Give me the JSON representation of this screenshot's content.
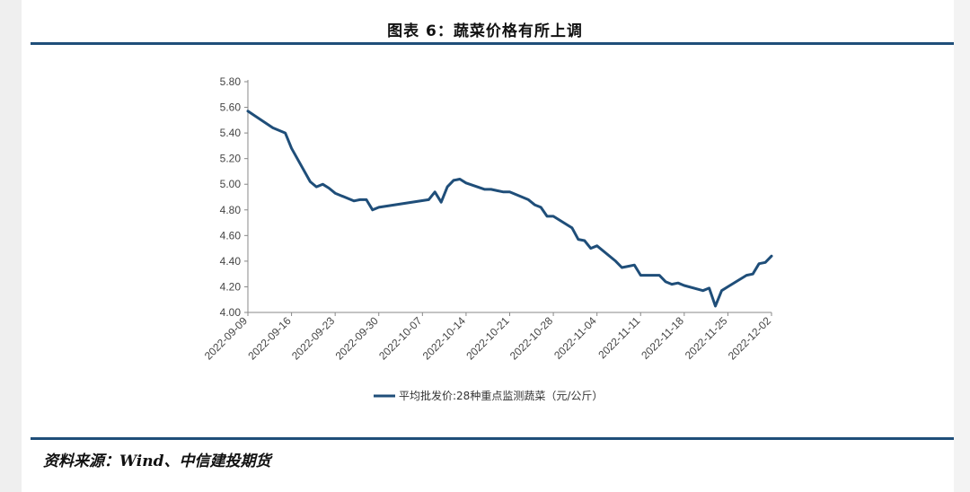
{
  "header": {
    "title": "图表 6：蔬菜价格有所上调"
  },
  "footer": {
    "source": "资料来源：Wind、中信建投期货"
  },
  "colors": {
    "line": "#1f4e79",
    "rule": "#1f4e79"
  },
  "chart_data": {
    "type": "line",
    "title": "",
    "xlabel": "",
    "ylabel": "",
    "ylim": [
      4.0,
      5.8
    ],
    "yticks": [
      "5.80",
      "5.60",
      "5.40",
      "5.20",
      "5.00",
      "4.80",
      "4.60",
      "4.40",
      "4.20",
      "4.00"
    ],
    "xticks": [
      "2022-09-09",
      "2022-09-16",
      "2022-09-23",
      "2022-09-30",
      "2022-10-07",
      "2022-10-14",
      "2022-10-21",
      "2022-10-28",
      "2022-11-04",
      "2022-11-11",
      "2022-11-18",
      "2022-11-25",
      "2022-12-02"
    ],
    "legend_position": "bottom",
    "grid": false,
    "series": [
      {
        "name": "平均批发价:28种重点监测蔬菜（元/公斤）",
        "x": [
          "2022-09-09",
          "2022-09-13",
          "2022-09-15",
          "2022-09-16",
          "2022-09-19",
          "2022-09-20",
          "2022-09-21",
          "2022-09-22",
          "2022-09-23",
          "2022-09-26",
          "2022-09-27",
          "2022-09-28",
          "2022-09-29",
          "2022-09-30",
          "2022-10-08",
          "2022-10-09",
          "2022-10-10",
          "2022-10-11",
          "2022-10-12",
          "2022-10-13",
          "2022-10-14",
          "2022-10-17",
          "2022-10-18",
          "2022-10-19",
          "2022-10-20",
          "2022-10-21",
          "2022-10-24",
          "2022-10-25",
          "2022-10-26",
          "2022-10-27",
          "2022-10-28",
          "2022-10-31",
          "2022-11-01",
          "2022-11-02",
          "2022-11-03",
          "2022-11-04",
          "2022-11-07",
          "2022-11-08",
          "2022-11-09",
          "2022-11-10",
          "2022-11-11",
          "2022-11-14",
          "2022-11-15",
          "2022-11-16",
          "2022-11-17",
          "2022-11-18",
          "2022-11-21",
          "2022-11-22",
          "2022-11-23",
          "2022-11-24",
          "2022-11-25",
          "2022-11-28",
          "2022-11-29",
          "2022-11-30",
          "2022-12-01",
          "2022-12-02"
        ],
        "values": [
          5.57,
          5.44,
          5.4,
          5.28,
          5.02,
          4.98,
          5.0,
          4.97,
          4.93,
          4.87,
          4.88,
          4.88,
          4.8,
          4.82,
          4.88,
          4.94,
          4.86,
          4.98,
          5.03,
          5.04,
          5.01,
          4.96,
          4.96,
          4.95,
          4.94,
          4.94,
          4.88,
          4.84,
          4.82,
          4.75,
          4.75,
          4.66,
          4.57,
          4.56,
          4.5,
          4.52,
          4.4,
          4.35,
          4.36,
          4.37,
          4.29,
          4.29,
          4.24,
          4.22,
          4.23,
          4.21,
          4.17,
          4.19,
          4.05,
          4.17,
          4.2,
          4.29,
          4.3,
          4.38,
          4.39,
          4.44
        ]
      }
    ]
  }
}
